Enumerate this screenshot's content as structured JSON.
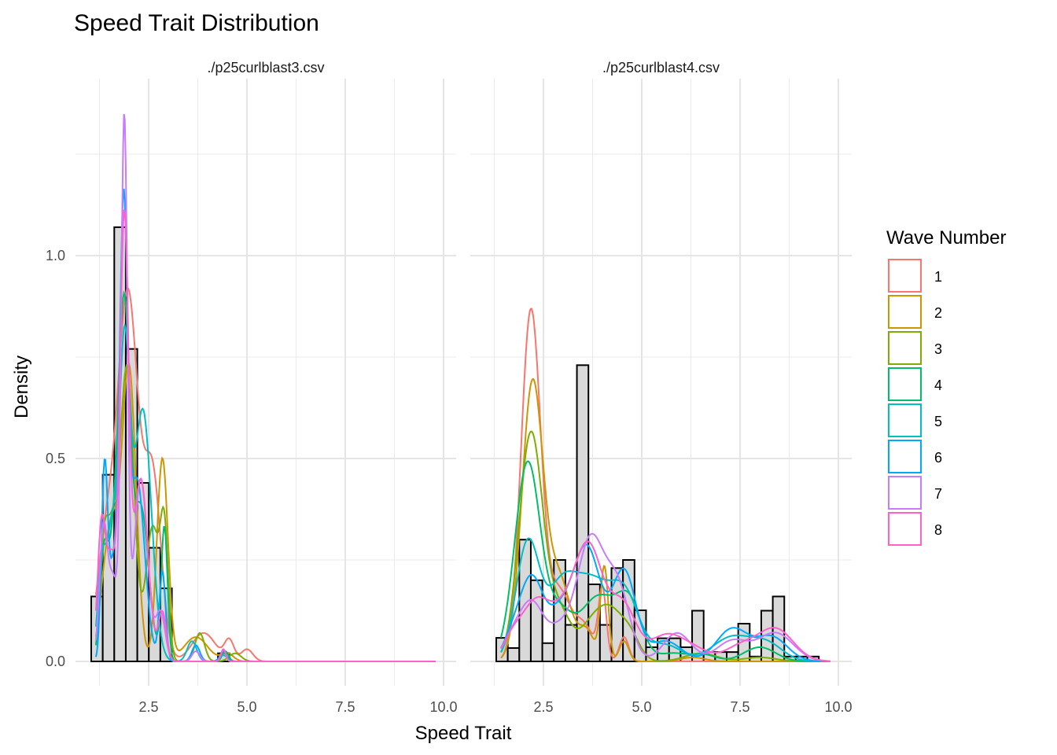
{
  "chart_data": {
    "type": "histogram+density",
    "title": "Speed Trait Distribution",
    "xlabel": "Speed Trait",
    "ylabel": "Density",
    "xlim": [
      0.9,
      10.3
    ],
    "ylim": [
      -0.06,
      1.42
    ],
    "x_ticks": [
      "2.5",
      "5.0",
      "7.5",
      "10.0"
    ],
    "x_tick_values": [
      2.5,
      5.0,
      7.5,
      10.0
    ],
    "x_minor_values": [
      1.25,
      3.75,
      6.25,
      8.75
    ],
    "y_ticks": [
      "0.0",
      "0.5",
      "1.0"
    ],
    "y_tick_values": [
      0.0,
      0.5,
      1.0
    ],
    "y_minor_values": [
      0.25,
      0.75,
      1.25
    ],
    "grid": true,
    "legend": {
      "title": "Wave Number",
      "placement": "right",
      "entries": [
        "1",
        "2",
        "3",
        "4",
        "5",
        "6",
        "7",
        "8"
      ],
      "colors": [
        "#F8766D",
        "#CD9600",
        "#7CAE00",
        "#00BE67",
        "#00BFC4",
        "#00A9FF",
        "#C77CFF",
        "#FF61CC"
      ]
    },
    "bar_fill": "#d9d9d9",
    "bar_stroke": "#000000",
    "panels": [
      {
        "label": "./p25curlblast3.csv",
        "bin_start": 1.04,
        "bin_width": 0.293,
        "bins_end": 9.9,
        "histogram": [
          0.16,
          0.46,
          1.07,
          0.77,
          0.44,
          0.28,
          0.18,
          0,
          0,
          0,
          0,
          0.02,
          0,
          0,
          0,
          0,
          0,
          0,
          0,
          0,
          0,
          0,
          0,
          0,
          0,
          0,
          0,
          0,
          0,
          0
        ],
        "density_peaks": [
          {
            "wave": "1",
            "components": [
              [
                1.35,
                0.12,
                0.2
              ],
              [
                1.6,
                0.25,
                0.3
              ],
              [
                2.0,
                0.8,
                0.25
              ],
              [
                2.6,
                0.45,
                0.22
              ],
              [
                3.9,
                0.07,
                0.3
              ],
              [
                4.55,
                0.05,
                0.12
              ],
              [
                5.0,
                0.03,
                0.15
              ]
            ]
          },
          {
            "wave": "2",
            "components": [
              [
                1.3,
                0.06,
                0.12
              ],
              [
                1.55,
                0.32,
                0.18
              ],
              [
                2.0,
                0.72,
                0.18
              ],
              [
                2.85,
                0.5,
                0.14
              ],
              [
                3.7,
                0.06,
                0.3
              ],
              [
                4.5,
                0.02,
                0.15
              ]
            ]
          },
          {
            "wave": "3",
            "components": [
              [
                1.35,
                0.2,
                0.1
              ],
              [
                1.55,
                0.28,
                0.15
              ],
              [
                1.95,
                0.72,
                0.18
              ],
              [
                2.6,
                0.33,
                0.17
              ],
              [
                2.9,
                0.3,
                0.1
              ],
              [
                3.8,
                0.07,
                0.12
              ],
              [
                4.7,
                0.02,
                0.15
              ]
            ]
          },
          {
            "wave": "4",
            "components": [
              [
                1.35,
                0.22,
                0.1
              ],
              [
                1.6,
                0.26,
                0.15
              ],
              [
                1.88,
                0.82,
                0.14
              ],
              [
                2.3,
                0.38,
                0.2
              ],
              [
                2.9,
                0.33,
                0.08
              ],
              [
                4.45,
                0.025,
                0.08
              ]
            ]
          },
          {
            "wave": "5",
            "components": [
              [
                1.3,
                0.22,
                0.1
              ],
              [
                1.55,
                0.3,
                0.13
              ],
              [
                1.88,
                0.75,
                0.14
              ],
              [
                2.35,
                0.62,
                0.22
              ],
              [
                3.6,
                0.05,
                0.12
              ],
              [
                4.4,
                0.015,
                0.1
              ]
            ]
          },
          {
            "wave": "6",
            "components": [
              [
                1.38,
                0.48,
                0.08
              ],
              [
                1.6,
                0.22,
                0.1
              ],
              [
                1.86,
                1.05,
                0.1
              ],
              [
                2.2,
                0.45,
                0.2
              ],
              [
                2.85,
                0.22,
                0.08
              ],
              [
                3.7,
                0.04,
                0.1
              ],
              [
                4.4,
                0.025,
                0.08
              ]
            ]
          },
          {
            "wave": "7",
            "components": [
              [
                1.35,
                0.32,
                0.1
              ],
              [
                1.6,
                0.2,
                0.12
              ],
              [
                1.88,
                1.32,
                0.08
              ],
              [
                2.3,
                0.45,
                0.17
              ],
              [
                2.8,
                0.12,
                0.12
              ],
              [
                3.7,
                0.025,
                0.1
              ],
              [
                4.4,
                0.03,
                0.06
              ]
            ]
          },
          {
            "wave": "8",
            "components": [
              [
                1.3,
                0.33,
                0.1
              ],
              [
                1.55,
                0.25,
                0.12
              ],
              [
                1.88,
                1.08,
                0.11
              ],
              [
                2.3,
                0.45,
                0.18
              ],
              [
                2.85,
                0.12,
                0.1
              ],
              [
                4.4,
                0.03,
                0.06
              ]
            ]
          }
        ]
      },
      {
        "label": "./p25curlblast4.csv",
        "bin_start": 1.3,
        "bin_width": 0.293,
        "bins_end": 9.9,
        "histogram": [
          0.058,
          0.033,
          0.3,
          0.2,
          0.045,
          0.25,
          0.09,
          0.73,
          0.19,
          0.09,
          0.23,
          0.25,
          0.126,
          0.035,
          0.057,
          0.057,
          0.035,
          0.125,
          0.023,
          0.023,
          0.023,
          0.093,
          0.012,
          0.125,
          0.16,
          0.012,
          0.012,
          0.012,
          0.0,
          0.0
        ],
        "density_peaks": [
          {
            "wave": "1",
            "components": [
              [
                2.18,
                0.86,
                0.25
              ],
              [
                2.9,
                0.17,
                0.3
              ],
              [
                3.55,
                0.08,
                0.25
              ],
              [
                4.0,
                0.17,
                0.1
              ],
              [
                4.55,
                0.06,
                0.12
              ]
            ]
          },
          {
            "wave": "2",
            "components": [
              [
                2.22,
                0.68,
                0.27
              ],
              [
                2.9,
                0.2,
                0.3
              ],
              [
                3.6,
                0.07,
                0.2
              ],
              [
                4.05,
                0.23,
                0.1
              ],
              [
                4.55,
                0.05,
                0.12
              ],
              [
                6.3,
                0.01,
                0.3
              ]
            ]
          },
          {
            "wave": "3",
            "components": [
              [
                2.18,
                0.56,
                0.3
              ],
              [
                2.9,
                0.12,
                0.3
              ],
              [
                3.7,
                0.08,
                0.3
              ],
              [
                4.2,
                0.11,
                0.3
              ],
              [
                4.7,
                0.06,
                0.25
              ],
              [
                6.5,
                0.02,
                0.4
              ],
              [
                8.0,
                0.01,
                0.4
              ]
            ]
          },
          {
            "wave": "4",
            "components": [
              [
                2.1,
                0.49,
                0.33
              ],
              [
                2.9,
                0.1,
                0.3
              ],
              [
                3.9,
                0.16,
                0.5
              ],
              [
                4.7,
                0.12,
                0.3
              ],
              [
                5.8,
                0.02,
                0.4
              ],
              [
                6.6,
                0.015,
                0.3
              ],
              [
                8.0,
                0.035,
                0.4
              ]
            ]
          },
          {
            "wave": "5",
            "components": [
              [
                2.1,
                0.29,
                0.3
              ],
              [
                2.9,
                0.13,
                0.35
              ],
              [
                3.7,
                0.2,
                0.55
              ],
              [
                4.6,
                0.13,
                0.35
              ],
              [
                5.6,
                0.04,
                0.4
              ],
              [
                7.3,
                0.06,
                0.5
              ],
              [
                8.2,
                0.04,
                0.4
              ]
            ]
          },
          {
            "wave": "6",
            "components": [
              [
                1.7,
                0.05,
                0.25
              ],
              [
                2.2,
                0.2,
                0.3
              ],
              [
                2.9,
                0.1,
                0.3
              ],
              [
                3.6,
                0.28,
                0.35
              ],
              [
                4.55,
                0.22,
                0.3
              ],
              [
                5.6,
                0.05,
                0.4
              ],
              [
                7.3,
                0.08,
                0.4
              ],
              [
                8.3,
                0.06,
                0.4
              ]
            ]
          },
          {
            "wave": "7",
            "components": [
              [
                1.7,
                0.05,
                0.25
              ],
              [
                2.2,
                0.14,
                0.3
              ],
              [
                2.9,
                0.07,
                0.3
              ],
              [
                3.7,
                0.3,
                0.35
              ],
              [
                4.4,
                0.17,
                0.3
              ],
              [
                5.9,
                0.07,
                0.35
              ],
              [
                7.3,
                0.05,
                0.4
              ],
              [
                8.4,
                0.07,
                0.45
              ]
            ]
          },
          {
            "wave": "8",
            "components": [
              [
                1.7,
                0.05,
                0.25
              ],
              [
                2.3,
                0.14,
                0.35
              ],
              [
                3.0,
                0.1,
                0.35
              ],
              [
                3.65,
                0.27,
                0.35
              ],
              [
                4.5,
                0.14,
                0.35
              ],
              [
                5.6,
                0.06,
                0.4
              ],
              [
                6.3,
                0.03,
                0.4
              ],
              [
                7.5,
                0.035,
                0.4
              ],
              [
                8.4,
                0.08,
                0.45
              ]
            ]
          }
        ]
      }
    ]
  }
}
